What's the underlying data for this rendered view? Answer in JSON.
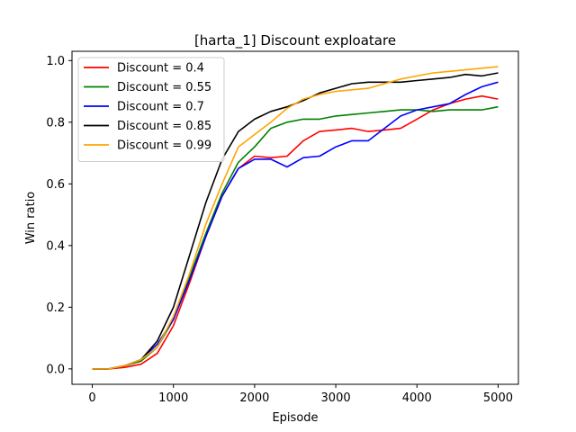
{
  "chart_data": {
    "type": "line",
    "title": "[harta_1] Discount  exploatare",
    "xlabel": "Episode",
    "ylabel": "Win ratio",
    "xlim": [
      -250,
      5250
    ],
    "ylim": [
      -0.05,
      1.03
    ],
    "xticks": [
      0,
      1000,
      2000,
      3000,
      4000,
      5000
    ],
    "yticks": [
      0.0,
      0.2,
      0.4,
      0.6,
      0.8,
      1.0
    ],
    "xtick_labels": [
      "0",
      "1000",
      "2000",
      "3000",
      "4000",
      "5000"
    ],
    "ytick_labels": [
      "0.0",
      "0.2",
      "0.4",
      "0.6",
      "0.8",
      "1.0"
    ],
    "grid": false,
    "legend_position": "top-left",
    "x": [
      0,
      200,
      400,
      600,
      800,
      1000,
      1200,
      1400,
      1600,
      1800,
      2000,
      2200,
      2400,
      2600,
      2800,
      3000,
      3200,
      3400,
      3600,
      3800,
      4000,
      4200,
      4400,
      4600,
      4800,
      5000
    ],
    "series": [
      {
        "name": "Discount = 0.4",
        "color": "#ff0000",
        "values": [
          0.0,
          0.0,
          0.005,
          0.015,
          0.05,
          0.14,
          0.28,
          0.43,
          0.56,
          0.65,
          0.69,
          0.685,
          0.69,
          0.74,
          0.77,
          0.775,
          0.78,
          0.77,
          0.775,
          0.78,
          0.81,
          0.84,
          0.86,
          0.875,
          0.885,
          0.875
        ]
      },
      {
        "name": "Discount = 0.55",
        "color": "#008000",
        "values": [
          0.0,
          0.0,
          0.01,
          0.025,
          0.07,
          0.16,
          0.3,
          0.44,
          0.57,
          0.67,
          0.72,
          0.78,
          0.8,
          0.81,
          0.81,
          0.82,
          0.825,
          0.83,
          0.835,
          0.84,
          0.84,
          0.835,
          0.84,
          0.84,
          0.84,
          0.85
        ]
      },
      {
        "name": "Discount = 0.7",
        "color": "#0000ff",
        "values": [
          0.0,
          0.0,
          0.01,
          0.03,
          0.08,
          0.16,
          0.29,
          0.43,
          0.56,
          0.65,
          0.68,
          0.68,
          0.655,
          0.685,
          0.69,
          0.72,
          0.74,
          0.74,
          0.78,
          0.82,
          0.84,
          0.85,
          0.86,
          0.89,
          0.915,
          0.93
        ]
      },
      {
        "name": "Discount = 0.85",
        "color": "#000000",
        "values": [
          0.0,
          0.0,
          0.01,
          0.03,
          0.09,
          0.2,
          0.37,
          0.54,
          0.68,
          0.77,
          0.81,
          0.835,
          0.85,
          0.87,
          0.895,
          0.91,
          0.925,
          0.93,
          0.93,
          0.93,
          0.935,
          0.94,
          0.945,
          0.955,
          0.95,
          0.96
        ]
      },
      {
        "name": "Discount = 0.99",
        "color": "#ffa500",
        "values": [
          0.0,
          0.0,
          0.01,
          0.03,
          0.07,
          0.17,
          0.31,
          0.47,
          0.6,
          0.72,
          0.76,
          0.8,
          0.845,
          0.875,
          0.89,
          0.9,
          0.905,
          0.91,
          0.925,
          0.94,
          0.95,
          0.96,
          0.965,
          0.97,
          0.975,
          0.98
        ]
      }
    ]
  }
}
